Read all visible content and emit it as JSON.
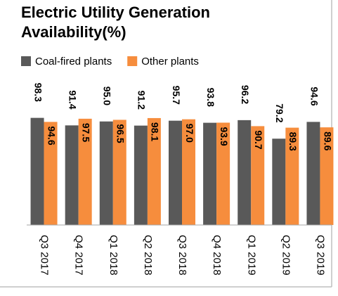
{
  "chart_data": {
    "type": "bar",
    "title": [
      "Electric Utility Generation",
      "Availability(%)"
    ],
    "categories": [
      "Q3 2017",
      "Q4 2017",
      "Q1 2018",
      "Q2 2018",
      "Q3 2018",
      "Q4 2018",
      "Q1 2019",
      "Q2 2019",
      "Q3 2019"
    ],
    "series": [
      {
        "name": "Coal-fired plants",
        "color": "#595959",
        "values": [
          98.3,
          91.4,
          95.0,
          91.2,
          95.7,
          93.8,
          96.2,
          79.2,
          94.6
        ],
        "value_labels": [
          "98.3",
          "91.4",
          "95.0",
          "91.2",
          "95.7",
          "93.8",
          "96.2",
          "79.2",
          "94.6"
        ]
      },
      {
        "name": "Other plants",
        "color": "#f68d3d",
        "values": [
          94.6,
          97.5,
          96.5,
          98.1,
          97.0,
          93.9,
          90.7,
          89.3,
          89.6
        ],
        "value_labels": [
          "94.6",
          "97.5",
          "96.5",
          "98.1",
          "97.0",
          "93.9",
          "90.7",
          "89.3",
          "89.6"
        ]
      }
    ],
    "ylim": [
      0,
      100
    ],
    "legend": "top-left"
  }
}
